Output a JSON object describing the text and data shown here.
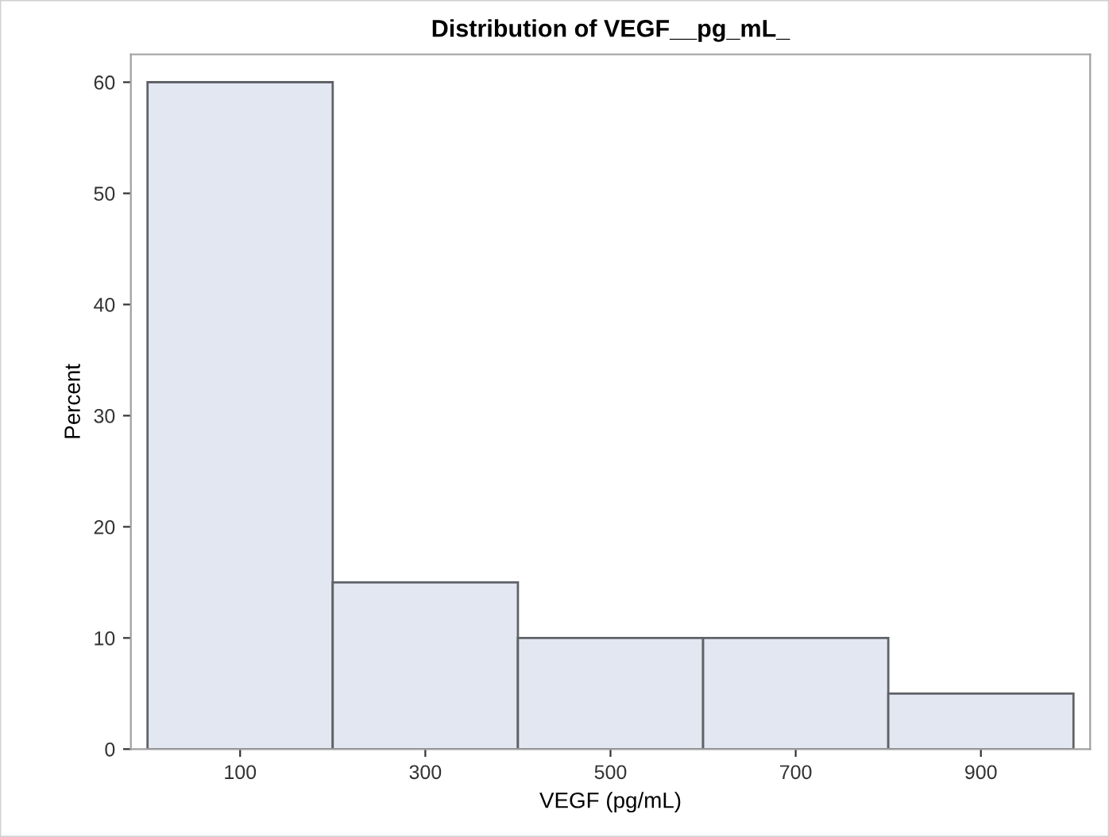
{
  "chart_data": {
    "type": "histogram",
    "title": "Distribution of VEGF__pg_mL_",
    "xlabel": "VEGF (pg/mL)",
    "ylabel": "Percent",
    "bins": [
      0,
      200,
      400,
      600,
      800,
      1000
    ],
    "values": [
      60,
      15,
      10,
      10,
      5
    ],
    "color": "#e3e7f1",
    "xlim": [
      -18,
      1018
    ],
    "xticks": [
      100,
      300,
      500,
      700,
      900
    ],
    "ylim": [
      0,
      62.5
    ],
    "yticks": [
      0,
      10,
      20,
      30,
      40,
      50,
      60
    ],
    "grid": false
  }
}
